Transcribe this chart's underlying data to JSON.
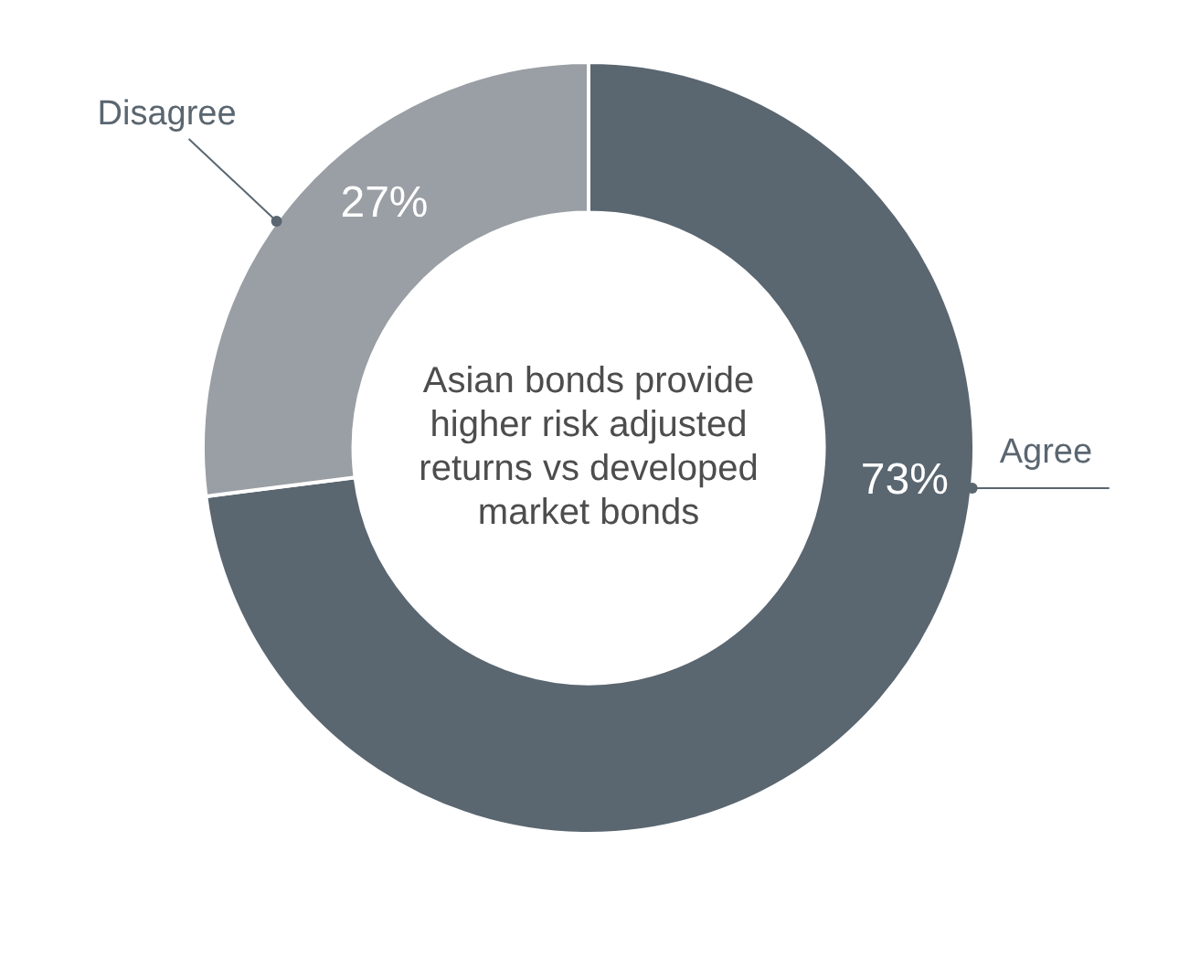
{
  "chart_data": {
    "type": "donut",
    "categories": [
      "Agree",
      "Disagree"
    ],
    "values": [
      73,
      27
    ],
    "colors": [
      "#5a6670",
      "#9a9fa5"
    ],
    "value_labels": [
      "73%",
      "27%"
    ],
    "annotations": [
      "Asian bonds provide higher risk adjusted returns vs developed market bonds"
    ]
  }
}
